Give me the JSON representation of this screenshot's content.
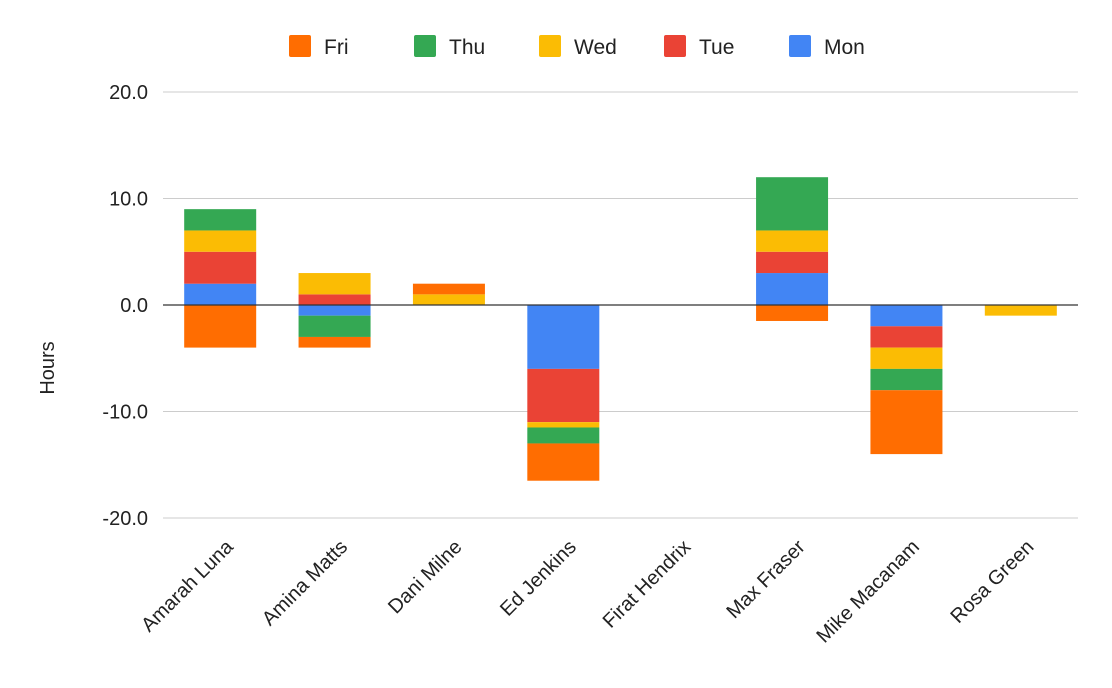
{
  "chart_data": {
    "type": "bar",
    "stacked": true,
    "title": "",
    "xlabel": "",
    "ylabel": "Hours",
    "ylim": [
      -20,
      20
    ],
    "yticks": [
      20.0,
      10.0,
      0.0,
      -10.0,
      -20.0
    ],
    "ytick_labels": [
      "20.0",
      "10.0",
      "0.0",
      "-10.0",
      "-20.0"
    ],
    "grid": true,
    "legend_position": "top",
    "categories": [
      "Amarah Luna",
      "Amina Matts",
      "Dani Milne",
      "Ed Jenkins",
      "Firat Hendrix",
      "Max Fraser",
      "Mike Macanam",
      "Rosa Green"
    ],
    "series": [
      {
        "name": "Mon",
        "color": "#4285F4",
        "values": [
          2,
          -1,
          0,
          -6,
          0,
          3,
          -2,
          0
        ]
      },
      {
        "name": "Tue",
        "color": "#EA4335",
        "values": [
          3,
          1,
          0,
          -5,
          0,
          2,
          -2,
          0
        ]
      },
      {
        "name": "Wed",
        "color": "#FBBC04",
        "values": [
          2,
          2,
          1,
          -0.5,
          0,
          2,
          -2,
          -1
        ]
      },
      {
        "name": "Thu",
        "color": "#34A853",
        "values": [
          2,
          -2,
          0,
          -1.5,
          0,
          5,
          -2,
          0
        ]
      },
      {
        "name": "Fri",
        "color": "#FF6D01",
        "values": [
          -4,
          -1,
          1,
          -3.5,
          0,
          -1.5,
          -6,
          0
        ]
      }
    ],
    "legend_order": [
      "Fri",
      "Thu",
      "Wed",
      "Tue",
      "Mon"
    ]
  }
}
